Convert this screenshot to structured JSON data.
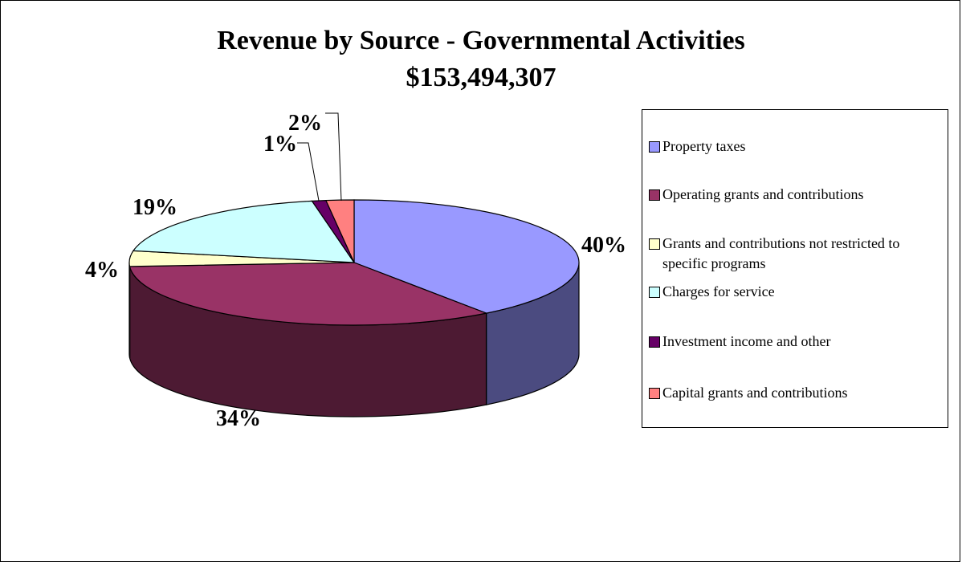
{
  "chart_data": {
    "type": "pie",
    "title": "Revenue by Source - Governmental Activities",
    "subtitle": "$153,494,307",
    "legend_position": "right",
    "slices": [
      {
        "label": "Property taxes",
        "value": 40,
        "display": "40%",
        "color": "#9999FF",
        "side_color": "#4B4B80"
      },
      {
        "label": "Operating grants and contributions",
        "value": 34,
        "display": "34%",
        "color": "#993366",
        "side_color": "#4D1A33"
      },
      {
        "label": "Grants and contributions not restricted to specific programs",
        "value": 4,
        "display": "4%",
        "color": "#FFFFCC",
        "side_color": "#808066"
      },
      {
        "label": "Charges for service",
        "value": 19,
        "display": "19%",
        "color": "#CCFFFF",
        "side_color": "#668080"
      },
      {
        "label": "Investment income and other",
        "value": 1,
        "display": "1%",
        "color": "#660066",
        "side_color": "#330033"
      },
      {
        "label": "Capital grants and contributions",
        "value": 2,
        "display": "2%",
        "color": "#FF8080",
        "side_color": "#804040"
      }
    ]
  }
}
